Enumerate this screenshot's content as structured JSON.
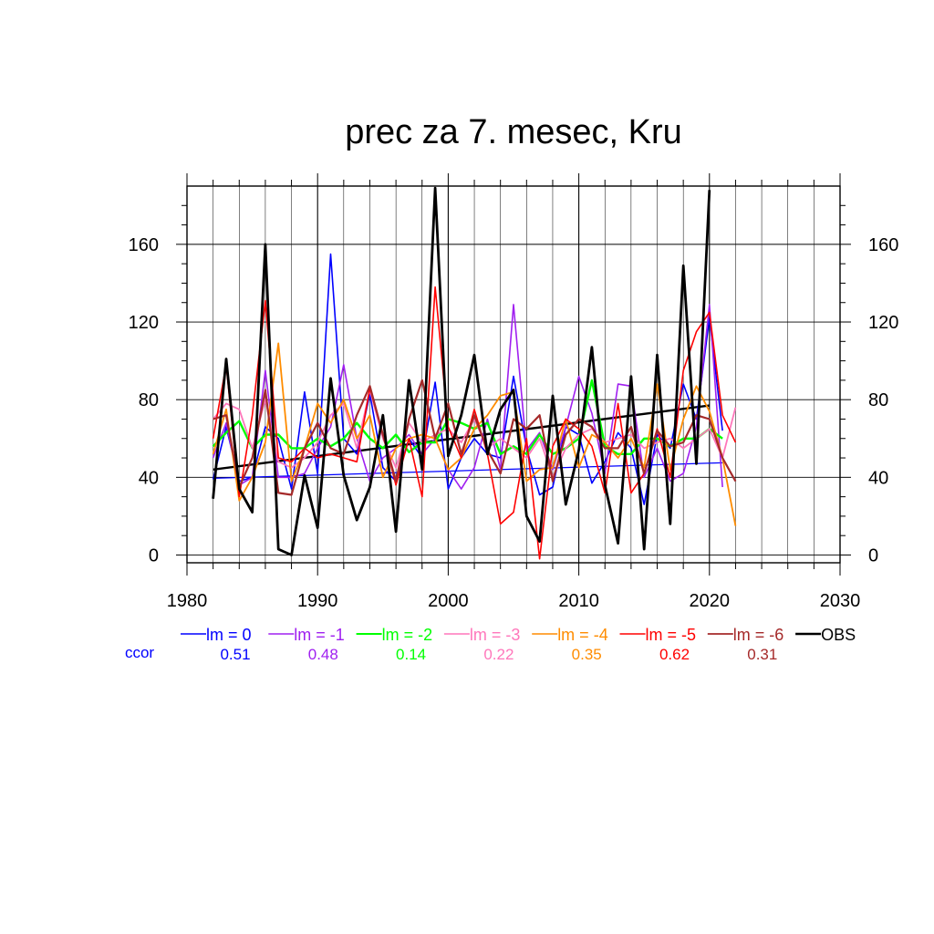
{
  "chart_data": {
    "type": "line",
    "title": "prec za 7. mesec, Kru",
    "xlabel": "",
    "ylabel": "",
    "xlim": [
      1980,
      2030
    ],
    "ylim": [
      -4,
      190
    ],
    "x_ticks": [
      1980,
      1990,
      2000,
      2010,
      2020,
      2030
    ],
    "y_ticks": [
      0,
      40,
      80,
      120,
      160
    ],
    "grid": true,
    "legend_position": "bottom",
    "ccor_label": "ccor",
    "series": [
      {
        "name": "lm = 0",
        "color": "#0000ff",
        "width": 1.6,
        "ccor": "0.51",
        "x": [
          1982,
          1983,
          1984,
          1985,
          1986,
          1987,
          1988,
          1989,
          1990,
          1991,
          1992,
          1993,
          1994,
          1995,
          1996,
          1997,
          1998,
          1999,
          2000,
          2001,
          2002,
          2003,
          2004,
          2005,
          2006,
          2007,
          2008,
          2009,
          2010,
          2011,
          2012,
          2013,
          2014,
          2015,
          2016,
          2017,
          2018,
          2019,
          2020,
          2021
        ],
        "y": [
          39,
          66,
          38,
          40,
          66,
          60,
          34,
          84,
          42,
          155,
          60,
          52,
          83,
          45,
          38,
          60,
          50,
          89,
          34,
          50,
          60,
          52,
          50,
          92,
          55,
          31,
          35,
          66,
          62,
          37,
          48,
          63,
          55,
          26,
          62,
          55,
          88,
          70,
          122,
          64
        ]
      },
      {
        "name": "lm = -1",
        "color": "#a020f0",
        "width": 1.6,
        "ccor": "0.48",
        "x": [
          1982,
          1983,
          1984,
          1985,
          1986,
          1987,
          1988,
          1989,
          1990,
          1991,
          1992,
          1993,
          1994,
          1995,
          1996,
          1997,
          1998,
          1999,
          2000,
          2001,
          2002,
          2003,
          2004,
          2005,
          2006,
          2007,
          2008,
          2009,
          2010,
          2011,
          2012,
          2013,
          2014,
          2015,
          2016,
          2017,
          2018,
          2019,
          2020,
          2021
        ],
        "y": [
          50,
          68,
          36,
          40,
          95,
          40,
          40,
          42,
          55,
          66,
          98,
          60,
          38,
          50,
          55,
          62,
          52,
          60,
          44,
          34,
          45,
          70,
          44,
          129,
          54,
          63,
          44,
          66,
          92,
          73,
          42,
          88,
          87,
          40,
          55,
          38,
          42,
          66,
          129,
          35
        ]
      },
      {
        "name": "lm = -2",
        "color": "#00ff00",
        "width": 2.4,
        "ccor": "0.14",
        "x": [
          1982,
          1983,
          1984,
          1985,
          1986,
          1987,
          1988,
          1989,
          1990,
          1991,
          1992,
          1993,
          1994,
          1995,
          1996,
          1997,
          1998,
          1999,
          2000,
          2001,
          2002,
          2003,
          2004,
          2005,
          2006,
          2007,
          2008,
          2009,
          2010,
          2011,
          2012,
          2013,
          2014,
          2015,
          2016,
          2017,
          2018,
          2019,
          2020,
          2021
        ],
        "y": [
          56,
          63,
          69,
          55,
          62,
          62,
          55,
          55,
          60,
          56,
          60,
          68,
          60,
          55,
          62,
          53,
          58,
          58,
          70,
          68,
          65,
          68,
          52,
          56,
          52,
          62,
          52,
          55,
          60,
          90,
          56,
          52,
          52,
          60,
          60,
          56,
          60,
          60,
          65,
          60
        ]
      },
      {
        "name": "lm = -3",
        "color": "#ff77bb",
        "width": 1.8,
        "ccor": "0.22",
        "x": [
          1982,
          1983,
          1984,
          1985,
          1986,
          1987,
          1988,
          1989,
          1990,
          1991,
          1992,
          1993,
          1994,
          1995,
          1996,
          1997,
          1998,
          1999,
          2000,
          2001,
          2002,
          2003,
          2004,
          2005,
          2006,
          2007,
          2008,
          2009,
          2010,
          2011,
          2012,
          2013,
          2014,
          2015,
          2016,
          2017,
          2018,
          2019,
          2020,
          2021,
          2022
        ],
        "y": [
          70,
          78,
          75,
          55,
          80,
          48,
          45,
          50,
          58,
          72,
          78,
          55,
          85,
          60,
          45,
          68,
          58,
          62,
          65,
          58,
          70,
          55,
          60,
          55,
          50,
          60,
          40,
          55,
          62,
          65,
          58,
          60,
          62,
          55,
          58,
          60,
          55,
          60,
          65,
          50,
          76
        ]
      },
      {
        "name": "lm = -4",
        "color": "#ff8c00",
        "width": 1.8,
        "ccor": "0.35",
        "x": [
          1982,
          1983,
          1984,
          1985,
          1986,
          1987,
          1988,
          1989,
          1990,
          1991,
          1992,
          1993,
          1994,
          1995,
          1996,
          1997,
          1998,
          1999,
          2000,
          2001,
          2002,
          2003,
          2004,
          2005,
          2006,
          2007,
          2008,
          2009,
          2010,
          2011,
          2012,
          2013,
          2014,
          2015,
          2016,
          2017,
          2018,
          2019,
          2020,
          2021,
          2022
        ],
        "y": [
          52,
          75,
          28,
          40,
          58,
          109,
          38,
          55,
          78,
          68,
          80,
          60,
          72,
          40,
          55,
          60,
          62,
          60,
          44,
          50,
          65,
          72,
          82,
          84,
          38,
          44,
          45,
          70,
          45,
          62,
          58,
          50,
          60,
          45,
          88,
          44,
          70,
          87,
          74,
          50,
          15
        ]
      },
      {
        "name": "lm = -5",
        "color": "#ff0000",
        "width": 1.6,
        "ccor": "0.62",
        "x": [
          1982,
          1983,
          1984,
          1985,
          1986,
          1987,
          1988,
          1989,
          1990,
          1991,
          1992,
          1993,
          1994,
          1995,
          1996,
          1997,
          1998,
          1999,
          2000,
          2001,
          2002,
          2003,
          2004,
          2005,
          2006,
          2007,
          2008,
          2009,
          2010,
          2011,
          2012,
          2013,
          2014,
          2015,
          2016,
          2017,
          2018,
          2019,
          2020,
          2021,
          2022
        ],
        "y": [
          60,
          98,
          30,
          72,
          131,
          50,
          48,
          55,
          50,
          52,
          50,
          48,
          86,
          62,
          36,
          60,
          30,
          138,
          66,
          50,
          75,
          52,
          16,
          22,
          60,
          -2,
          56,
          70,
          65,
          56,
          32,
          78,
          32,
          42,
          65,
          40,
          95,
          115,
          125,
          72,
          58
        ]
      },
      {
        "name": "lm = -6",
        "color": "#a52a2a",
        "width": 2.2,
        "ccor": "0.31",
        "x": [
          1982,
          1983,
          1984,
          1985,
          1986,
          1987,
          1988,
          1989,
          1990,
          1991,
          1992,
          1993,
          1994,
          1995,
          1996,
          1997,
          1998,
          1999,
          2000,
          2001,
          2002,
          2003,
          2004,
          2005,
          2006,
          2007,
          2008,
          2009,
          2010,
          2011,
          2012,
          2013,
          2014,
          2015,
          2016,
          2017,
          2018,
          2019,
          2020,
          2021,
          2022
        ],
        "y": [
          70,
          72,
          35,
          50,
          85,
          32,
          31,
          55,
          68,
          55,
          52,
          72,
          87,
          62,
          38,
          70,
          90,
          60,
          78,
          52,
          72,
          54,
          42,
          70,
          65,
          72,
          38,
          62,
          70,
          66,
          55,
          55,
          66,
          42,
          64,
          56,
          58,
          72,
          70,
          50,
          38
        ]
      },
      {
        "name": "OBS",
        "color": "#000000",
        "width": 2.8,
        "ccor": "",
        "x": [
          1982,
          1983,
          1984,
          1985,
          1986,
          1987,
          1988,
          1989,
          1990,
          1991,
          1992,
          1993,
          1994,
          1995,
          1996,
          1997,
          1998,
          1999,
          2000,
          2001,
          2002,
          2003,
          2004,
          2005,
          2006,
          2007,
          2008,
          2009,
          2010,
          2011,
          2012,
          2013,
          2014,
          2015,
          2016,
          2017,
          2018,
          2019,
          2020
        ],
        "y": [
          29,
          101,
          34,
          22,
          160,
          3,
          0,
          41,
          14,
          91,
          41,
          18,
          35,
          72,
          12,
          90,
          44,
          189,
          51,
          72,
          103,
          52,
          75,
          85,
          20,
          7,
          82,
          26,
          54,
          107,
          36,
          6,
          92,
          3,
          103,
          16,
          149,
          47,
          188
        ]
      }
    ],
    "trend_lines": [
      {
        "of": "lm = 0",
        "color": "#0000ff",
        "width": 1.2,
        "x": [
          1982,
          2021
        ],
        "y": [
          39.5,
          47.5
        ]
      },
      {
        "of": "OBS",
        "color": "#000000",
        "width": 2.4,
        "x": [
          1982,
          2020
        ],
        "y": [
          44,
          77
        ]
      }
    ]
  }
}
